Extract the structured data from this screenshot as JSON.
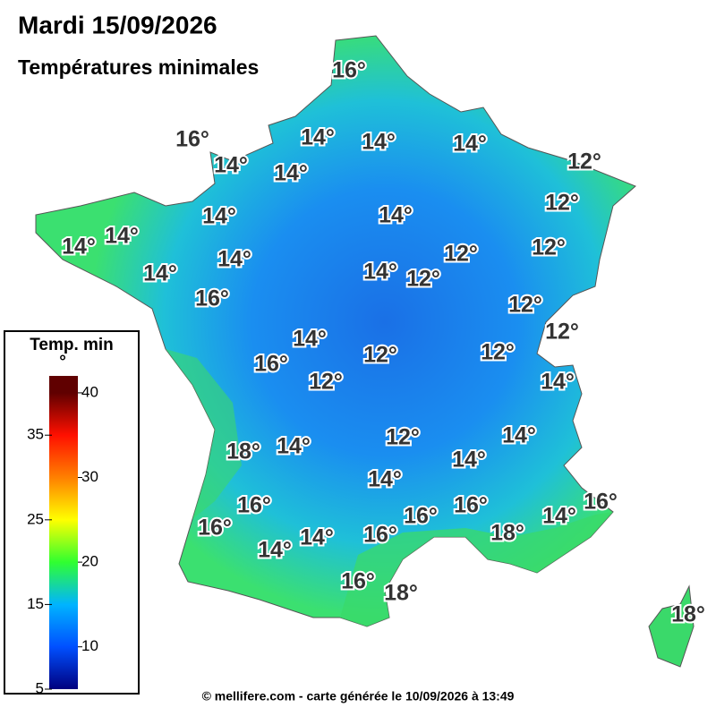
{
  "header": {
    "title": "Mardi 15/09/2026",
    "subtitle": "Températures minimales"
  },
  "labels": [
    "16°",
    "16°",
    "14°",
    "14°",
    "14°",
    "12°",
    "14°",
    "14°",
    "12°",
    "14°",
    "14°",
    "14°",
    "14°",
    "12°",
    "12°",
    "14°",
    "14°",
    "12°",
    "14°",
    "16°",
    "12°",
    "12°",
    "14°",
    "12°",
    "12°",
    "16°",
    "12°",
    "14°",
    "12°",
    "14°",
    "18°",
    "14°",
    "14°",
    "14°",
    "16°",
    "16°",
    "16°",
    "16°",
    "16°",
    "18°",
    "14°",
    "14°",
    "14°",
    "16°",
    "16°",
    "18°",
    "18°"
  ],
  "legend": {
    "title": "Temp. min",
    "unit": "°",
    "ticks": [
      5,
      10,
      15,
      20,
      25,
      30,
      35,
      40
    ],
    "range": [
      5,
      42
    ],
    "colors": [
      "#00007f",
      "#0050ff",
      "#00b4ff",
      "#30ff30",
      "#ffff00",
      "#ff8000",
      "#ff1000",
      "#600000"
    ]
  },
  "footer": "© mellifere.com - carte générée le 10/09/2026 à 13:49"
}
